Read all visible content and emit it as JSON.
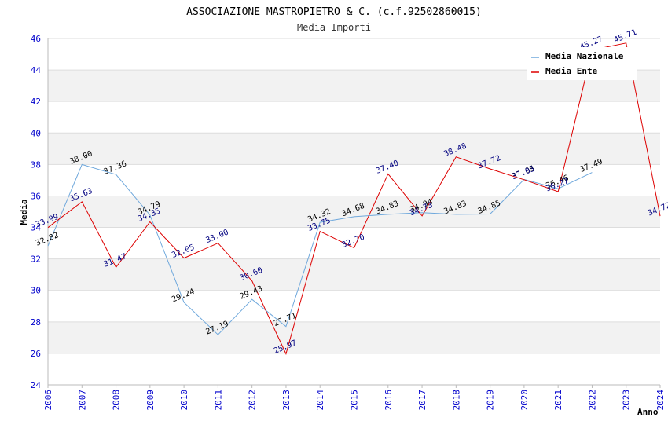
{
  "chart_data": {
    "type": "line",
    "title": "ASSOCIAZIONE MASTROPIETRO & C. (c.f.92502860015)",
    "subtitle": "Media Importi",
    "xlabel": "Anno",
    "ylabel": "Media",
    "ylim": [
      24,
      46
    ],
    "yticks": [
      24,
      26,
      28,
      30,
      32,
      34,
      36,
      38,
      40,
      42,
      44,
      46
    ],
    "x": [
      "2006",
      "2007",
      "2008",
      "2009",
      "2010",
      "2011",
      "2012",
      "2013",
      "2014",
      "2015",
      "2016",
      "2017",
      "2018",
      "2019",
      "2020",
      "2021",
      "2022",
      "2023",
      "2024"
    ],
    "grid": "horizontal bands",
    "legend_position": "top-right",
    "series": [
      {
        "name": "Media Nazionale",
        "color": "#6fa8dc",
        "label_color": "#000000",
        "values": [
          32.82,
          38.0,
          37.36,
          34.79,
          29.24,
          27.19,
          29.43,
          27.71,
          34.32,
          34.68,
          34.83,
          34.94,
          34.83,
          34.85,
          37.05,
          36.46,
          37.49,
          null,
          null
        ],
        "labels": [
          "32.82",
          "38.00",
          "37.36",
          "34.79",
          "29.24",
          "27.19",
          "29.43",
          "27.71",
          "34.32",
          "34.68",
          "34.83",
          "34.94",
          "34.83",
          "34.85",
          "37.05",
          "36.46",
          "37.49",
          "",
          ""
        ]
      },
      {
        "name": "Media Ente",
        "color": "#dd0000",
        "label_color": "#000080",
        "values": [
          33.99,
          35.63,
          31.47,
          34.35,
          32.05,
          33.0,
          30.6,
          25.97,
          33.75,
          32.7,
          37.4,
          34.73,
          38.48,
          37.72,
          37.03,
          36.27,
          45.27,
          45.71,
          34.72
        ],
        "labels": [
          "33.99",
          "35.63",
          "31.47",
          "34.35",
          "32.05",
          "33.00",
          "30.60",
          "25.97",
          "33.75",
          "32.70",
          "37.40",
          "34.73",
          "38.48",
          "37.72",
          "37.03",
          "36.27",
          "45.27",
          "45.71",
          "34.72"
        ]
      }
    ]
  },
  "colors": {
    "axis_tick_text": "#0000cc",
    "band": "#f2f2f2",
    "gridline": "#dddddd"
  }
}
